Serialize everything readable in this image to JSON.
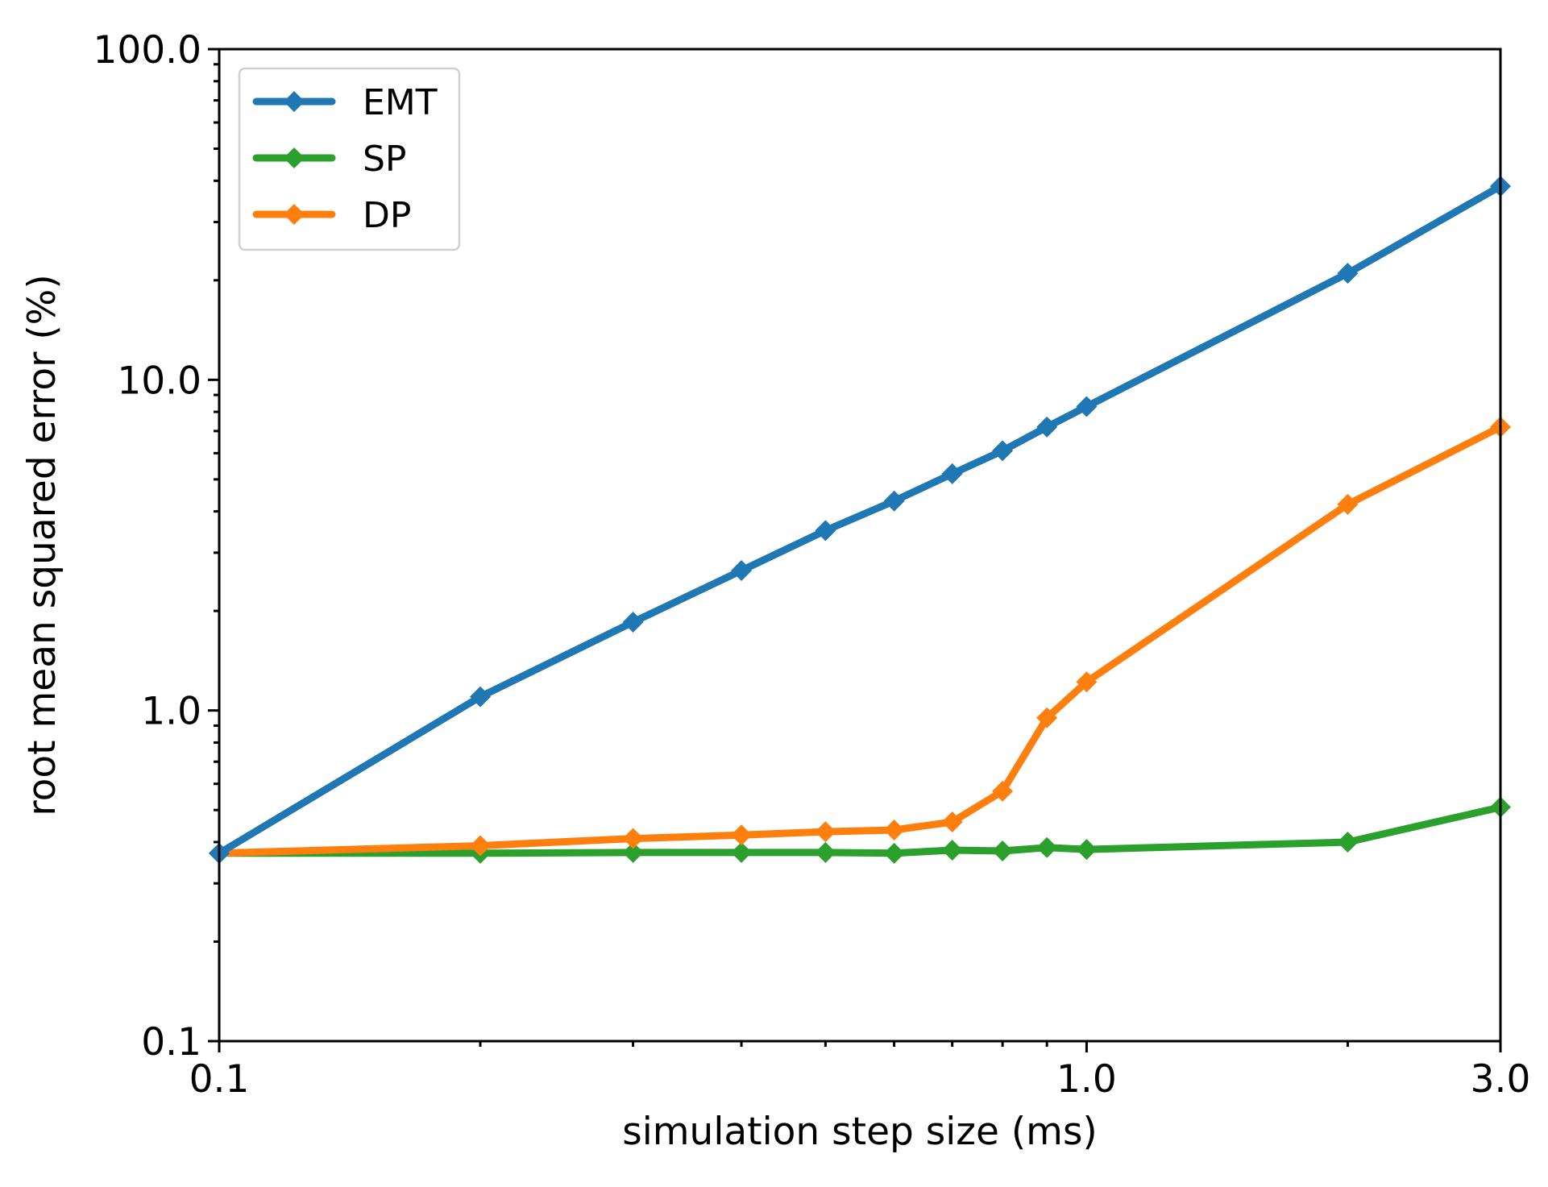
{
  "chart_data": {
    "type": "line",
    "title": "",
    "xlabel": "simulation step size (ms)",
    "ylabel": "root mean squared error (%)",
    "xscale": "log",
    "yscale": "log",
    "xlim": [
      0.1,
      3.0
    ],
    "ylim": [
      0.1,
      100.0
    ],
    "grid": false,
    "legend_position": "top-left",
    "x_tick_labels": [
      "0.1",
      "1.0",
      "3.0"
    ],
    "x_tick_values": [
      0.1,
      1.0,
      3.0
    ],
    "y_tick_labels": [
      "0.1",
      "1.0",
      "10.0",
      "100.0"
    ],
    "y_tick_values": [
      0.1,
      1.0,
      10.0,
      100.0
    ],
    "x": [
      0.1,
      0.2,
      0.3,
      0.4,
      0.5,
      0.6,
      0.7,
      0.8,
      0.9,
      1.0,
      2.0,
      3.0
    ],
    "series": [
      {
        "name": "EMT",
        "color": "#1f77b4",
        "values": [
          0.37,
          1.1,
          1.85,
          2.65,
          3.5,
          4.3,
          5.2,
          6.1,
          7.2,
          8.3,
          21.0,
          38.5
        ]
      },
      {
        "name": "SP",
        "color": "#2ca02c",
        "values": [
          0.37,
          0.37,
          0.372,
          0.372,
          0.372,
          0.37,
          0.378,
          0.376,
          0.385,
          0.38,
          0.4,
          0.51
        ]
      },
      {
        "name": "DP",
        "color": "#ff7f0e",
        "values": [
          0.37,
          0.39,
          0.41,
          0.42,
          0.43,
          0.435,
          0.46,
          0.57,
          0.95,
          1.22,
          4.2,
          7.2
        ]
      }
    ]
  }
}
